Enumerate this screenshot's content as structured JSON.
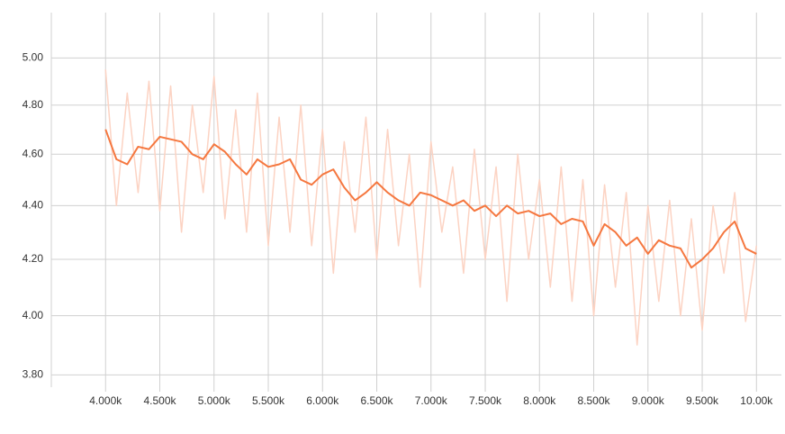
{
  "chart_data": {
    "type": "line",
    "x": [
      4000,
      4100,
      4200,
      4300,
      4400,
      4500,
      4600,
      4700,
      4800,
      4900,
      5000,
      5100,
      5200,
      5300,
      5400,
      5500,
      5600,
      5700,
      5800,
      5900,
      6000,
      6100,
      6200,
      6300,
      6400,
      6500,
      6600,
      6700,
      6800,
      6900,
      7000,
      7100,
      7200,
      7300,
      7400,
      7500,
      7600,
      7700,
      7800,
      7900,
      8000,
      8100,
      8200,
      8300,
      8400,
      8500,
      8600,
      8700,
      8800,
      8900,
      9000,
      9100,
      9200,
      9300,
      9400,
      9500,
      9600,
      9700,
      9800,
      9900,
      10000
    ],
    "series": [
      {
        "color": "#fcd3c3",
        "values": [
          4.95,
          4.4,
          4.85,
          4.45,
          4.9,
          4.38,
          4.88,
          4.3,
          4.8,
          4.45,
          4.92,
          4.35,
          4.78,
          4.3,
          4.85,
          4.25,
          4.75,
          4.3,
          4.8,
          4.25,
          4.7,
          4.15,
          4.65,
          4.3,
          4.75,
          4.2,
          4.7,
          4.25,
          4.6,
          4.1,
          4.65,
          4.3,
          4.55,
          4.15,
          4.62,
          4.2,
          4.55,
          4.05,
          4.6,
          4.2,
          4.5,
          4.1,
          4.55,
          4.05,
          4.5,
          4.0,
          4.48,
          4.1,
          4.45,
          3.9,
          4.4,
          4.05,
          4.42,
          4.0,
          4.35,
          3.95,
          4.4,
          4.15,
          4.45,
          3.98,
          4.25
        ]
      },
      {
        "color": "#f5773f",
        "values": [
          4.7,
          4.58,
          4.56,
          4.63,
          4.62,
          4.67,
          4.66,
          4.65,
          4.6,
          4.58,
          4.64,
          4.61,
          4.56,
          4.52,
          4.58,
          4.55,
          4.56,
          4.58,
          4.5,
          4.48,
          4.52,
          4.54,
          4.47,
          4.42,
          4.45,
          4.49,
          4.45,
          4.42,
          4.4,
          4.45,
          4.44,
          4.42,
          4.4,
          4.42,
          4.38,
          4.4,
          4.36,
          4.4,
          4.37,
          4.38,
          4.36,
          4.37,
          4.33,
          4.35,
          4.34,
          4.25,
          4.33,
          4.3,
          4.25,
          4.28,
          4.22,
          4.27,
          4.25,
          4.24,
          4.17,
          4.2,
          4.24,
          4.3,
          4.34,
          4.24,
          4.22
        ]
      }
    ],
    "xlim": [
      3500,
      10230
    ],
    "ylim": [
      3.76,
      5.2
    ],
    "ylog": true,
    "grid": true,
    "xticks": [
      {
        "value": 4000,
        "label": "4.000k"
      },
      {
        "value": 4500,
        "label": "4.500k"
      },
      {
        "value": 5000,
        "label": "5.000k"
      },
      {
        "value": 5500,
        "label": "5.500k"
      },
      {
        "value": 6000,
        "label": "6.000k"
      },
      {
        "value": 6500,
        "label": "6.500k"
      },
      {
        "value": 7000,
        "label": "7.000k"
      },
      {
        "value": 7500,
        "label": "7.500k"
      },
      {
        "value": 8000,
        "label": "8.000k"
      },
      {
        "value": 8500,
        "label": "8.500k"
      },
      {
        "value": 9000,
        "label": "9.000k"
      },
      {
        "value": 9500,
        "label": "9.500k"
      },
      {
        "value": 10000,
        "label": "10.00k"
      }
    ],
    "yticks": [
      {
        "value": 3.8,
        "label": "3.80"
      },
      {
        "value": 4,
        "label": "4.00"
      },
      {
        "value": 4.2,
        "label": "4.20"
      },
      {
        "value": 4.4,
        "label": "4.40"
      },
      {
        "value": 4.6,
        "label": "4.60"
      },
      {
        "value": 4.8,
        "label": "4.80"
      },
      {
        "value": 5,
        "label": "5.00"
      }
    ]
  }
}
